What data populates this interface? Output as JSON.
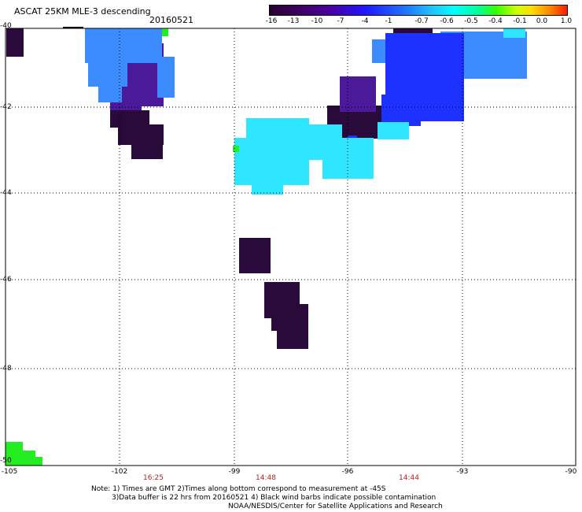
{
  "header": {
    "title": "ASCAT 25KM MLE-3 descending",
    "date": "20160521"
  },
  "colorbar": {
    "labels": [
      "-16",
      "-13",
      "-10",
      "-7",
      "-4",
      "-1",
      "-0.7",
      "-0.6",
      "-0.5",
      "-0.4",
      "-0.1",
      "0.0",
      "1.0"
    ]
  },
  "axes": {
    "lat_labels": [
      "-40",
      "-42",
      "-44",
      "-46",
      "-48",
      "-50"
    ],
    "lon_labels": [
      "-105",
      "-102",
      "-99",
      "-96",
      "-93",
      "-90"
    ],
    "times": [
      "16:25",
      "14:48",
      "14:44"
    ]
  },
  "notes": {
    "line1": "Note: 1) Times are GMT 2)Times along bottom correspond to measurement at -45S",
    "line2": "3)Data buffer is 22 hrs from 20160521 4) Black wind barbs indicate possible contamination",
    "line3": "NOAA/NESDIS/Center for Satellite Applications and Research"
  },
  "colors": {
    "deep_purple": "#2a0a3a",
    "purple": "#4a1a9a",
    "blue": "#1e32ff",
    "light_blue": "#3c8cff",
    "cyan": "#2ee6ff",
    "green": "#22ee22"
  }
}
